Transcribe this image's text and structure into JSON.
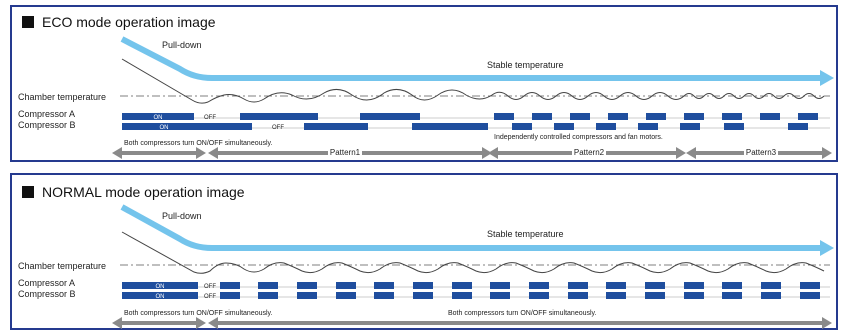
{
  "eco": {
    "title": "ECO mode operation image",
    "pull_down": "Pull-down",
    "stable": "Stable temperature",
    "chamber": "Chamber temperature",
    "comp_a": "Compressor A",
    "comp_b": "Compressor B",
    "on_a": "ON",
    "off_a": "OFF",
    "on_b": "ON",
    "off_b": "OFF",
    "note_independent": "Independently controlled compressors and fan motors.",
    "note_both": "Both compressors turn ON/OFF simultaneously.",
    "pattern1": "Pattern1",
    "pattern2": "Pattern2",
    "pattern3": "Pattern3"
  },
  "normal": {
    "title": "NORMAL mode operation image",
    "pull_down": "Pull-down",
    "stable": "Stable temperature",
    "chamber": "Chamber temperature",
    "comp_a": "Compressor A",
    "comp_b": "Compressor B",
    "on_a": "ON",
    "off_a": "OFF",
    "on_b": "ON",
    "off_b": "OFF",
    "note_both_1": "Both compressors turn ON/OFF simultaneously.",
    "note_both_2": "Both compressors turn ON/OFF simultaneously."
  },
  "colors": {
    "frame": "#253a8f",
    "arrow_light": "#74c4ec",
    "bar_blue": "#1f4e9e",
    "gray_arrow": "#8a8a8a",
    "curve": "#444444"
  }
}
